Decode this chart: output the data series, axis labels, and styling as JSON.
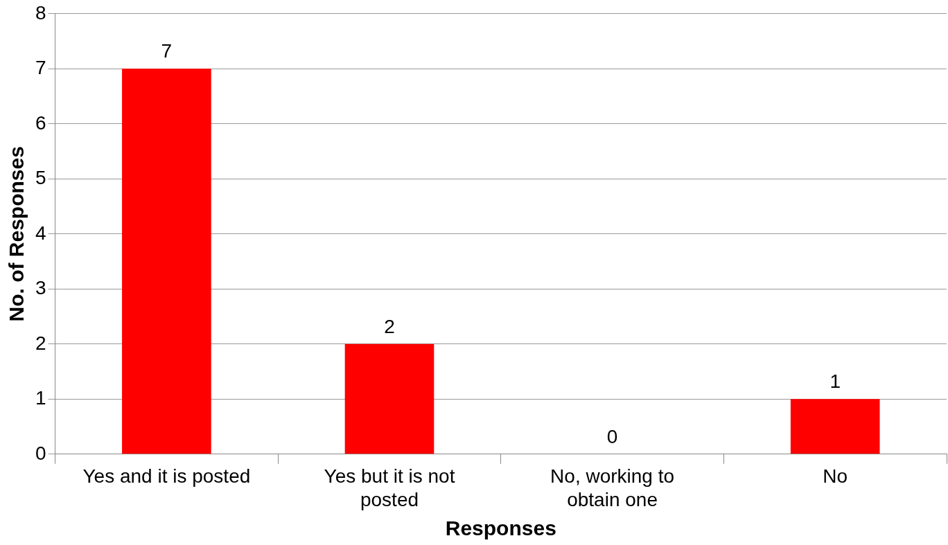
{
  "chart_data": {
    "type": "bar",
    "xlabel": "Responses",
    "ylabel": "No. of Responses",
    "categories": [
      "Yes and it is posted",
      "Yes but it is not posted",
      "No, working to obtain one",
      "No"
    ],
    "values": [
      7,
      2,
      0,
      1
    ],
    "color": "#ff0000",
    "ylim": [
      0,
      8
    ],
    "yticks": [
      0,
      1,
      2,
      3,
      4,
      5,
      6,
      7,
      8
    ],
    "grid": "y",
    "data_labels": true
  }
}
